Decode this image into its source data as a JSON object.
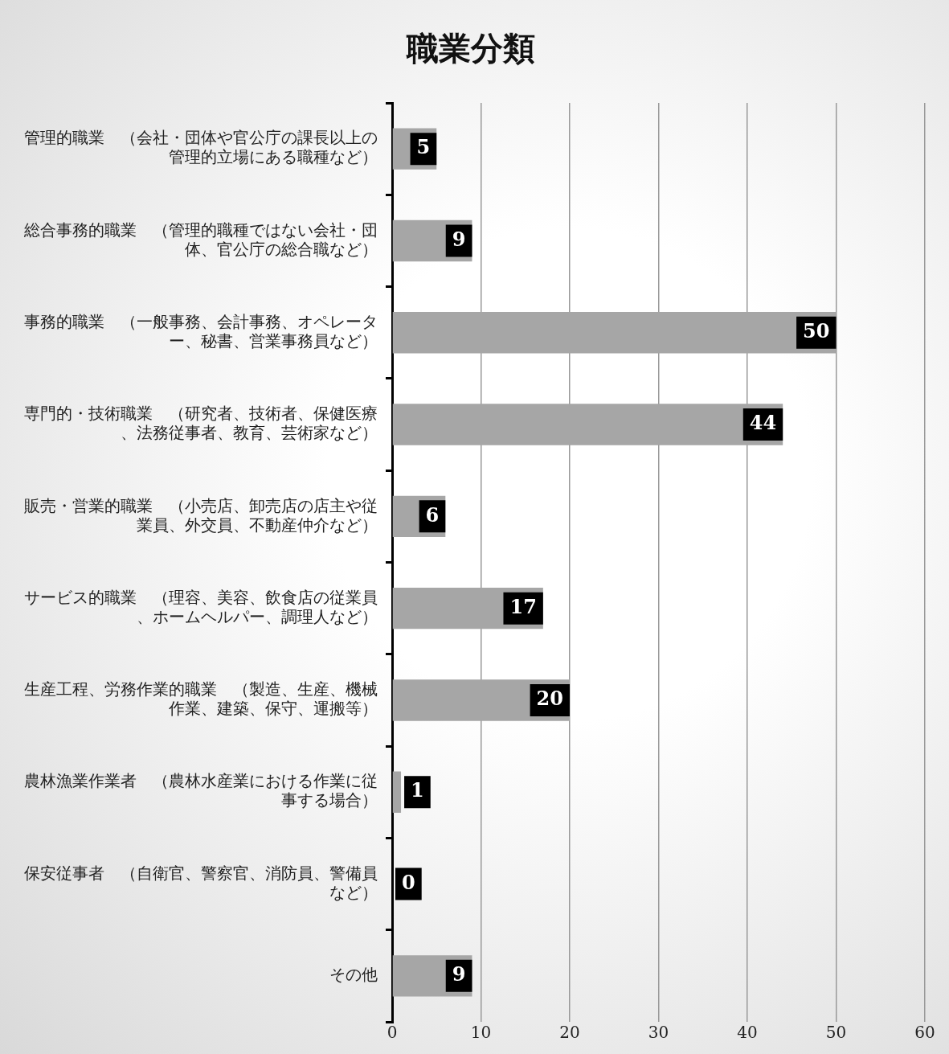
{
  "chart_data": {
    "type": "bar",
    "orientation": "horizontal",
    "title": "職業分類",
    "categories": [
      "管理的職業　（会社・団体や官公庁の課長以上の管理的立場にある職種など）",
      "総合事務的職業　（管理的職種ではない会社・団体、官公庁の総合職など）",
      "事務的職業　（一般事務、会計事務、オペレーター、秘書、営業事務員など）",
      "専門的・技術職業　（研究者、技術者、保健医療、法務従事者、教育、芸術家など）",
      "販売・営業的職業　（小売店、卸売店の店主や従業員、外交員、不動産仲介など）",
      "サービス的職業　（理容、美容、飲食店の従業員、ホームヘルパー、調理人など）",
      "生産工程、労務作業的職業　（製造、生産、機械作業、建築、保守、運搬等）",
      "農林漁業作業者　（農林水産業における作業に従事する場合）",
      "保安従事者　（自衛官、警察官、消防員、警備員など）",
      "その他"
    ],
    "values": [
      5,
      9,
      50,
      44,
      6,
      17,
      20,
      1,
      0,
      9
    ],
    "color": "#a6a6a6",
    "xlim": [
      0,
      60
    ],
    "xticks": [
      0,
      10,
      20,
      30,
      40,
      50,
      60
    ],
    "grid": "x",
    "legend": false,
    "data_labels": true
  }
}
